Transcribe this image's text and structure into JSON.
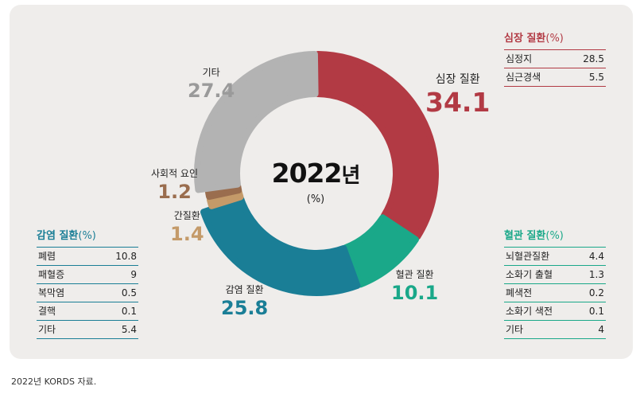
{
  "chart_data": {
    "type": "donut",
    "title": "2022년",
    "unit": "(%)",
    "slices": [
      {
        "name": "심장 질환",
        "value": 34.1,
        "color": "#b23a44"
      },
      {
        "name": "혈관 질환",
        "value": 10.1,
        "color": "#1aa889"
      },
      {
        "name": "감염 질환",
        "value": 25.8,
        "color": "#1a7e96"
      },
      {
        "name": "간질환",
        "value": 1.4,
        "color": "#c49a69"
      },
      {
        "name": "사회적 요인",
        "value": 1.2,
        "color": "#9a6d4e"
      },
      {
        "name": "기타",
        "value": 27.4,
        "color": "#b3b3b3"
      }
    ],
    "breakdowns": {
      "heart": {
        "title": "심장 질환",
        "unit": "(%)",
        "color": "#b23a44",
        "rows": [
          {
            "label": "심정지",
            "value": "28.5"
          },
          {
            "label": "심근경색",
            "value": "5.5"
          }
        ]
      },
      "vascular": {
        "title": "혈관 질환",
        "unit": "(%)",
        "color": "#1aa889",
        "rows": [
          {
            "label": "뇌혈관질환",
            "value": "4.4"
          },
          {
            "label": "소화기 출혈",
            "value": "1.3"
          },
          {
            "label": "폐색전",
            "value": "0.2"
          },
          {
            "label": "소화기 색전",
            "value": "0.1"
          },
          {
            "label": "기타",
            "value": "4"
          }
        ]
      },
      "infection": {
        "title": "감염 질환",
        "unit": "(%)",
        "color": "#1a7e96",
        "rows": [
          {
            "label": "폐렴",
            "value": "10.8"
          },
          {
            "label": "패혈증",
            "value": "9"
          },
          {
            "label": "복막염",
            "value": "0.5"
          },
          {
            "label": "결핵",
            "value": "0.1"
          },
          {
            "label": "기타",
            "value": "5.4"
          }
        ]
      }
    }
  },
  "footnote": "2022년 KORDS 자료."
}
